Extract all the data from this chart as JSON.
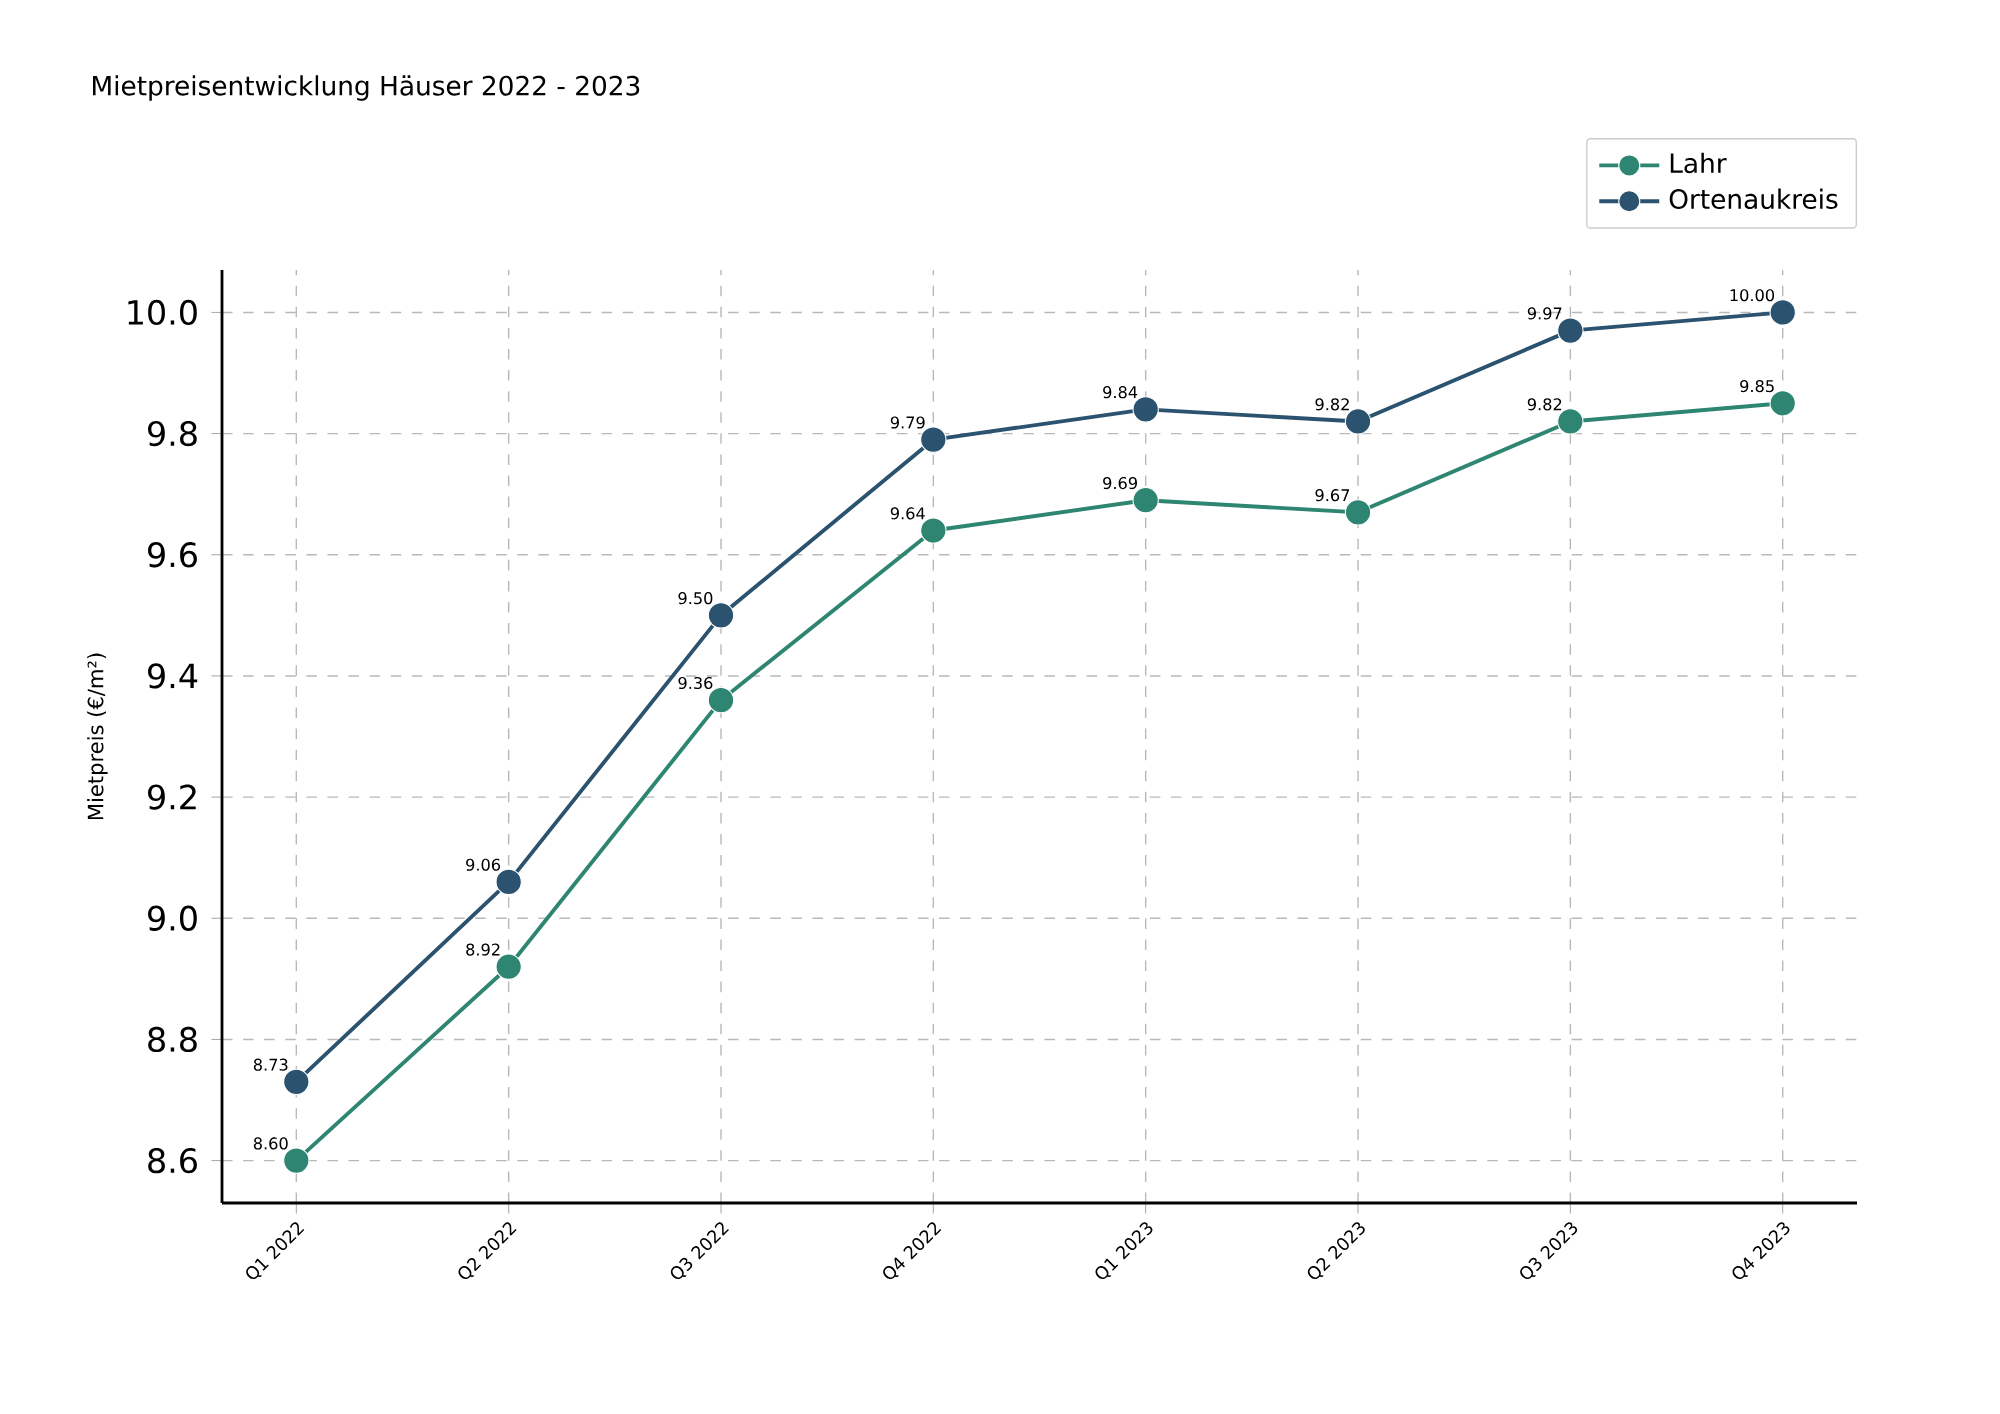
{
  "chart_data": {
    "type": "line",
    "title": "Mietpreisentwicklung Häuser 2022 - 2023",
    "ylabel": "Mietpreis (€/m²)",
    "categories": [
      "Q1 2022",
      "Q2 2022",
      "Q3 2022",
      "Q4 2022",
      "Q1 2023",
      "Q2 2023",
      "Q3 2023",
      "Q4 2023"
    ],
    "series": [
      {
        "name": "Lahr",
        "color": "#2e8571",
        "values": [
          8.6,
          8.92,
          9.36,
          9.64,
          9.69,
          9.67,
          9.82,
          9.85
        ],
        "value_labels": [
          "8.60",
          "8.92",
          "9.36",
          "9.64",
          "9.69",
          "9.67",
          "9.82",
          "9.85"
        ]
      },
      {
        "name": "Ortenaukreis",
        "color": "#2b526e",
        "values": [
          8.73,
          9.06,
          9.5,
          9.79,
          9.84,
          9.82,
          9.97,
          10.0
        ],
        "value_labels": [
          "8.73",
          "9.06",
          "9.50",
          "9.79",
          "9.84",
          "9.82",
          "9.97",
          "10.00"
        ]
      }
    ],
    "ylim": [
      8.53,
      10.07
    ],
    "yticks": [
      {
        "value": 8.6,
        "label": "8.6"
      },
      {
        "value": 8.8,
        "label": "8.8"
      },
      {
        "value": 9.0,
        "label": "9.0"
      },
      {
        "value": 9.2,
        "label": "9.2"
      },
      {
        "value": 9.4,
        "label": "9.4"
      },
      {
        "value": 9.6,
        "label": "9.6"
      },
      {
        "value": 9.8,
        "label": "9.8"
      },
      {
        "value": 10.0,
        "label": "10.0"
      }
    ],
    "grid": true,
    "legend": "top right",
    "marker": "circle",
    "line_style": "solid"
  }
}
